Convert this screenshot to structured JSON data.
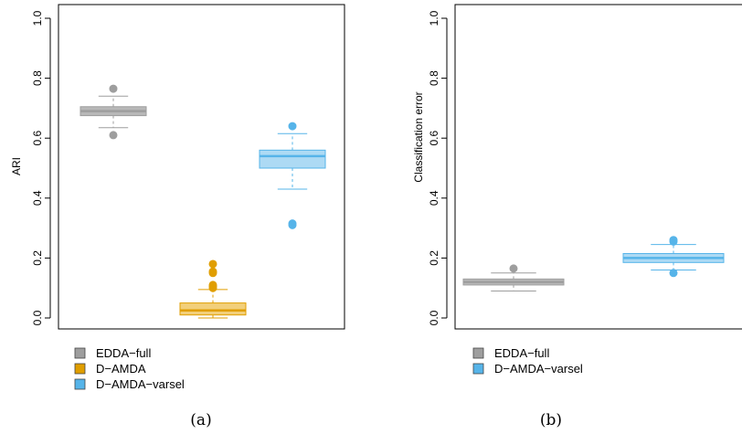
{
  "chart_data": [
    {
      "type": "box",
      "panel": "(a)",
      "xlabel": "",
      "ylabel": "ARI",
      "ylim": [
        0,
        1.0
      ],
      "yticks": [
        "0.0",
        "0.2",
        "0.4",
        "0.6",
        "0.8",
        "1.0"
      ],
      "legend_position": "below",
      "series": [
        {
          "name": "EDDA−full",
          "color": "#9e9e9e",
          "fill": "#b8b8b8",
          "q1": 0.675,
          "median": 0.69,
          "q3": 0.705,
          "whisker_low": 0.635,
          "whisker_high": 0.74,
          "outliers": [
            0.765,
            0.61
          ]
        },
        {
          "name": "D−AMDA",
          "color": "#e09e00",
          "fill": "#f2cf7a",
          "q1": 0.01,
          "median": 0.025,
          "q3": 0.05,
          "whisker_low": 0.0,
          "whisker_high": 0.095,
          "outliers": [
            0.1,
            0.105,
            0.11,
            0.15,
            0.155,
            0.18
          ]
        },
        {
          "name": "D−AMDA−varsel",
          "color": "#56b4e9",
          "fill": "#addaf4",
          "q1": 0.5,
          "median": 0.54,
          "q3": 0.56,
          "whisker_low": 0.43,
          "whisker_high": 0.615,
          "outliers": [
            0.64,
            0.31,
            0.315
          ]
        }
      ]
    },
    {
      "type": "box",
      "panel": "(b)",
      "xlabel": "",
      "ylabel": "Classification error",
      "ylim": [
        0,
        1.0
      ],
      "yticks": [
        "0.0",
        "0.2",
        "0.4",
        "0.6",
        "0.8",
        "1.0"
      ],
      "legend_position": "below",
      "series": [
        {
          "name": "EDDA−full",
          "color": "#9e9e9e",
          "fill": "#b8b8b8",
          "q1": 0.11,
          "median": 0.12,
          "q3": 0.13,
          "whisker_low": 0.09,
          "whisker_high": 0.15,
          "outliers": [
            0.165
          ]
        },
        {
          "name": "D−AMDA−varsel",
          "color": "#56b4e9",
          "fill": "#addaf4",
          "q1": 0.185,
          "median": 0.2,
          "q3": 0.215,
          "whisker_low": 0.16,
          "whisker_high": 0.245,
          "outliers": [
            0.255,
            0.26,
            0.15
          ]
        }
      ]
    }
  ]
}
